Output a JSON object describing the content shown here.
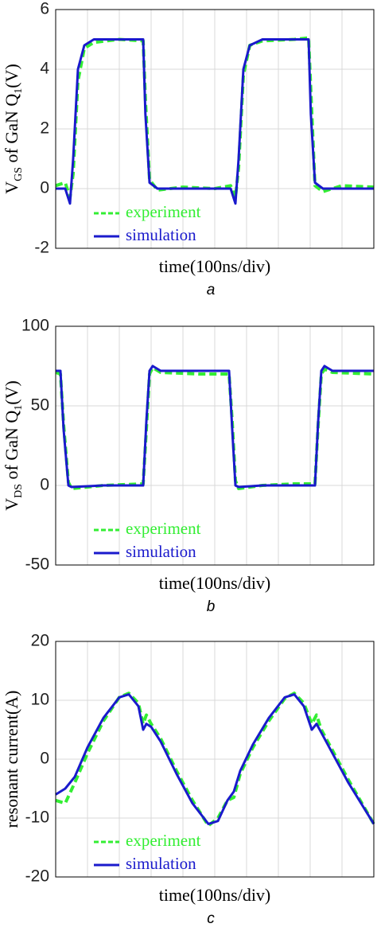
{
  "chart_data": [
    {
      "type": "line",
      "ylabel": [
        "V",
        "GS",
        " of GaN Q",
        "1",
        "(V)"
      ],
      "xlabel": "time(100ns/div)",
      "caption": "a",
      "xlim": [
        0,
        10
      ],
      "ylim": [
        -2,
        6
      ],
      "yticks": [
        -2,
        0,
        2,
        4,
        6
      ],
      "grid": true,
      "legend": "lower left",
      "x": [
        0,
        0.3,
        0.45,
        0.55,
        0.7,
        0.9,
        1.2,
        2.0,
        2.75,
        2.82,
        2.95,
        3.2,
        4.0,
        5.0,
        5.5,
        5.65,
        5.75,
        5.9,
        6.1,
        6.5,
        7.5,
        7.95,
        8.02,
        8.15,
        8.4,
        9.0,
        10
      ],
      "series": [
        {
          "name": "experiment",
          "color": "#33ee33",
          "dashed": true,
          "values": [
            0.1,
            0.2,
            -0.3,
            0.5,
            3.6,
            4.7,
            4.9,
            5,
            4.95,
            3,
            0.3,
            -0.05,
            0.05,
            0,
            0.1,
            -0.3,
            0.7,
            3.8,
            4.8,
            4.95,
            5,
            5.05,
            3.3,
            0.1,
            -0.1,
            0.1,
            0.05
          ]
        },
        {
          "name": "simulation",
          "color": "#1a1acc",
          "dashed": false,
          "values": [
            0,
            0,
            -0.5,
            1,
            4,
            4.8,
            5,
            5,
            5,
            2.5,
            0.2,
            0,
            0,
            0,
            0,
            -0.5,
            1,
            4,
            4.8,
            5,
            5,
            5,
            2.5,
            0.2,
            0,
            0,
            0
          ]
        }
      ]
    },
    {
      "type": "line",
      "ylabel": [
        "V",
        "DS",
        " of GaN Q",
        "1",
        "(V)"
      ],
      "xlabel": "time(100ns/div)",
      "caption": "b",
      "xlim": [
        0,
        10
      ],
      "ylim": [
        -50,
        100
      ],
      "yticks": [
        -50,
        0,
        50,
        100
      ],
      "grid": true,
      "legend": "lower left",
      "x": [
        0,
        0.15,
        0.25,
        0.4,
        0.5,
        1.5,
        2.75,
        2.85,
        2.95,
        3.05,
        3.3,
        4.5,
        5.45,
        5.55,
        5.65,
        5.75,
        6.5,
        7.5,
        8.15,
        8.25,
        8.35,
        8.45,
        8.7,
        10
      ],
      "series": [
        {
          "name": "experiment",
          "color": "#33ee33",
          "dashed": true,
          "values": [
            71,
            70,
            38,
            2,
            -2,
            0,
            1,
            35,
            70,
            74,
            71,
            70,
            70,
            40,
            3,
            -2,
            0,
            1,
            1,
            38,
            70,
            73,
            71,
            70
          ]
        },
        {
          "name": "simulation",
          "color": "#1a1acc",
          "dashed": false,
          "values": [
            72,
            72,
            35,
            0,
            -1,
            0,
            0,
            40,
            72,
            75,
            72,
            72,
            72,
            35,
            0,
            -1,
            0,
            0,
            0,
            40,
            72,
            75,
            72,
            72
          ]
        }
      ]
    },
    {
      "type": "line",
      "ylabel": [
        "resonant current(A)"
      ],
      "xlabel": "time(100ns/div)",
      "caption": "c",
      "xlim": [
        0,
        10
      ],
      "ylim": [
        -20,
        20
      ],
      "yticks": [
        -20,
        -10,
        0,
        10,
        20
      ],
      "grid": true,
      "legend": "lower left",
      "x": [
        0,
        0.3,
        0.6,
        1.0,
        1.5,
        2.0,
        2.3,
        2.6,
        2.75,
        2.85,
        3.0,
        3.3,
        3.8,
        4.3,
        4.8,
        5.1,
        5.4,
        5.6,
        5.8,
        6.2,
        6.7,
        7.2,
        7.5,
        7.8,
        8.05,
        8.2,
        8.35,
        8.6,
        9.2,
        10
      ],
      "series": [
        {
          "name": "experiment",
          "color": "#33ee33",
          "dashed": true,
          "values": [
            -7,
            -7.5,
            -4,
            1,
            6.5,
            10.5,
            11.2,
            9.5,
            6,
            7.5,
            6,
            3.5,
            -2,
            -7,
            -11.3,
            -10,
            -7,
            -6.5,
            -2.5,
            2,
            6.5,
            10.3,
            11.2,
            9.5,
            6,
            7.5,
            5,
            2.5,
            -3.5,
            -11
          ]
        },
        {
          "name": "simulation",
          "color": "#1a1acc",
          "dashed": false,
          "values": [
            -6,
            -5,
            -3,
            2,
            7,
            10.5,
            11,
            9,
            5,
            6,
            5.5,
            3,
            -2.5,
            -7.5,
            -11,
            -10.5,
            -7,
            -5.5,
            -2,
            2.5,
            7,
            10.5,
            11,
            9,
            5,
            6,
            4.5,
            2,
            -4,
            -11
          ]
        }
      ]
    }
  ]
}
